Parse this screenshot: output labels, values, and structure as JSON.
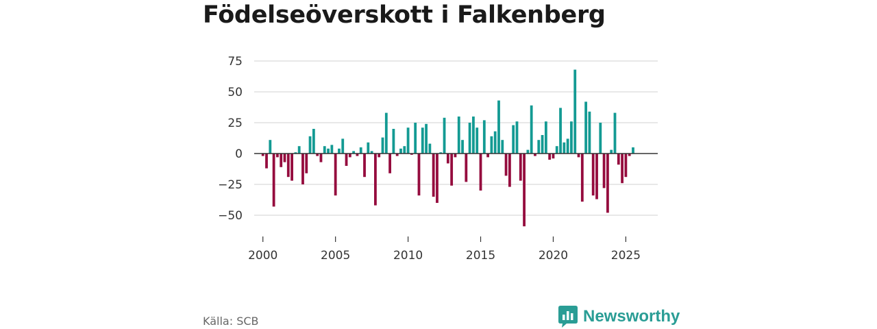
{
  "title": "Födelseöverskott i Falkenberg",
  "source": "Källa: SCB",
  "brand": {
    "name": "Newsworthy",
    "icon": "newsworthy-logo-icon"
  },
  "colors": {
    "positive": "#139a93",
    "negative": "#950c3e",
    "grid": "#d9d9d9",
    "zero": "#333333"
  },
  "chart_data": {
    "type": "bar",
    "title": "Födelseöverskott i Falkenberg",
    "xlabel": "",
    "ylabel": "",
    "ylim": [
      -62,
      78
    ],
    "xlim": [
      1999.4,
      2027.2
    ],
    "yticks": [
      75,
      50,
      25,
      0,
      -25,
      -50
    ],
    "ytick_labels": [
      "75",
      "50",
      "25",
      "0",
      "−25",
      "−50"
    ],
    "xticks": [
      2000,
      2005,
      2010,
      2015,
      2020,
      2025
    ],
    "xtick_labels": [
      "2000",
      "2005",
      "2010",
      "2015",
      "2020",
      "2025"
    ],
    "grid": true,
    "series": [
      {
        "name": "Födelseöverskott",
        "x": [
          2000.0,
          2000.25,
          2000.5,
          2000.75,
          2001.0,
          2001.25,
          2001.5,
          2001.75,
          2002.0,
          2002.25,
          2002.5,
          2002.75,
          2003.0,
          2003.25,
          2003.5,
          2003.75,
          2004.0,
          2004.25,
          2004.5,
          2004.75,
          2005.0,
          2005.25,
          2005.5,
          2005.75,
          2006.0,
          2006.25,
          2006.5,
          2006.75,
          2007.0,
          2007.25,
          2007.5,
          2007.75,
          2008.0,
          2008.25,
          2008.5,
          2008.75,
          2009.0,
          2009.25,
          2009.5,
          2009.75,
          2010.0,
          2010.25,
          2010.5,
          2010.75,
          2011.0,
          2011.25,
          2011.5,
          2011.75,
          2012.0,
          2012.25,
          2012.5,
          2012.75,
          2013.0,
          2013.25,
          2013.5,
          2013.75,
          2014.0,
          2014.25,
          2014.5,
          2014.75,
          2015.0,
          2015.25,
          2015.5,
          2015.75,
          2016.0,
          2016.25,
          2016.5,
          2016.75,
          2017.0,
          2017.25,
          2017.5,
          2017.75,
          2018.0,
          2018.25,
          2018.5,
          2018.75,
          2019.0,
          2019.25,
          2019.5,
          2019.75,
          2020.0,
          2020.25,
          2020.5,
          2020.75,
          2021.0,
          2021.25,
          2021.5,
          2021.75,
          2022.0,
          2022.25,
          2022.5,
          2022.75,
          2023.0,
          2023.25,
          2023.5,
          2023.75,
          2024.0,
          2024.25,
          2024.5,
          2024.75,
          2025.0,
          2025.25,
          2025.5
        ],
        "values": [
          -2,
          -12,
          11,
          -43,
          -3,
          -11,
          -7,
          -19,
          -22,
          1,
          6,
          -25,
          -16,
          14,
          20,
          -2,
          -7,
          6,
          4,
          7,
          -34,
          4,
          12,
          -10,
          -3,
          2,
          -2,
          5,
          -19,
          9,
          2,
          -42,
          -3,
          13,
          33,
          -16,
          20,
          -2,
          4,
          6,
          21,
          -1,
          25,
          -34,
          21,
          24,
          8,
          -35,
          -40,
          1,
          29,
          -8,
          -26,
          -3,
          30,
          11,
          -23,
          25,
          30,
          21,
          -30,
          27,
          -3,
          14,
          18,
          43,
          11,
          -18,
          -27,
          23,
          26,
          -22,
          -59,
          3,
          39,
          -2,
          11,
          15,
          26,
          -5,
          -4,
          6,
          37,
          9,
          12,
          26,
          68,
          -3,
          -39,
          42,
          34,
          -34,
          -37,
          25,
          -28,
          -48,
          3,
          33,
          -9,
          -24,
          -19,
          -2,
          5
        ]
      }
    ]
  }
}
